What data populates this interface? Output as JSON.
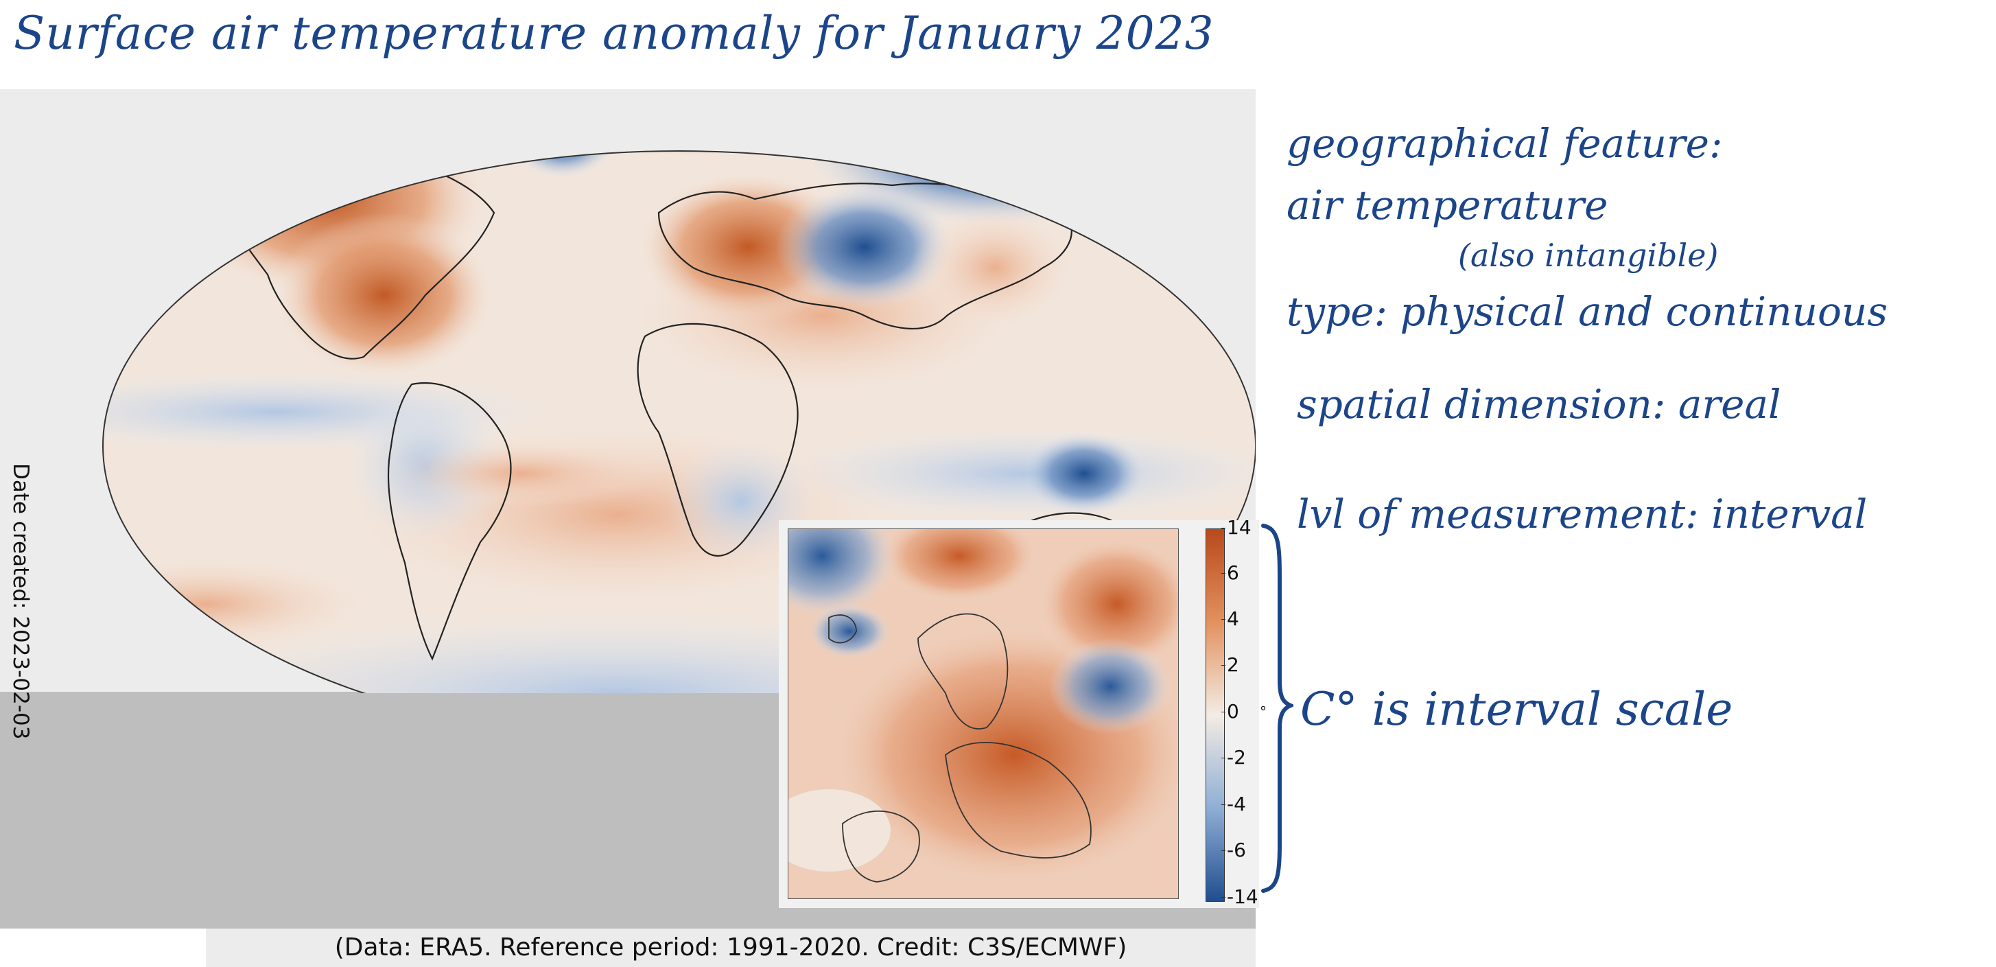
{
  "title": "Surface air temperature anomaly for January 2023",
  "map": {
    "date_created": "Date created: 2023-02-03",
    "caption": "(Data: ERA5.  Reference period: 1991-2020.  Credit: C3S/ECMWF)",
    "colorbar": {
      "ticks": [
        "14",
        "6",
        "4",
        "2",
        "0",
        "-2",
        "-4",
        "-6",
        "-14"
      ],
      "unit": "°",
      "warm_color": "#b8491b",
      "cold_color": "#1f4e8f",
      "neutral_color": "#f3ece4"
    }
  },
  "annotations": {
    "line1": "geographical feature:",
    "line2": "air temperature",
    "line3": "(also intangible)",
    "line4": "type: physical and continuous",
    "line5": "spatial dimension: areal",
    "line6": "lvl of measurement: interval",
    "line7": "C° is interval scale"
  },
  "colors": {
    "ink": "#1c4589"
  }
}
